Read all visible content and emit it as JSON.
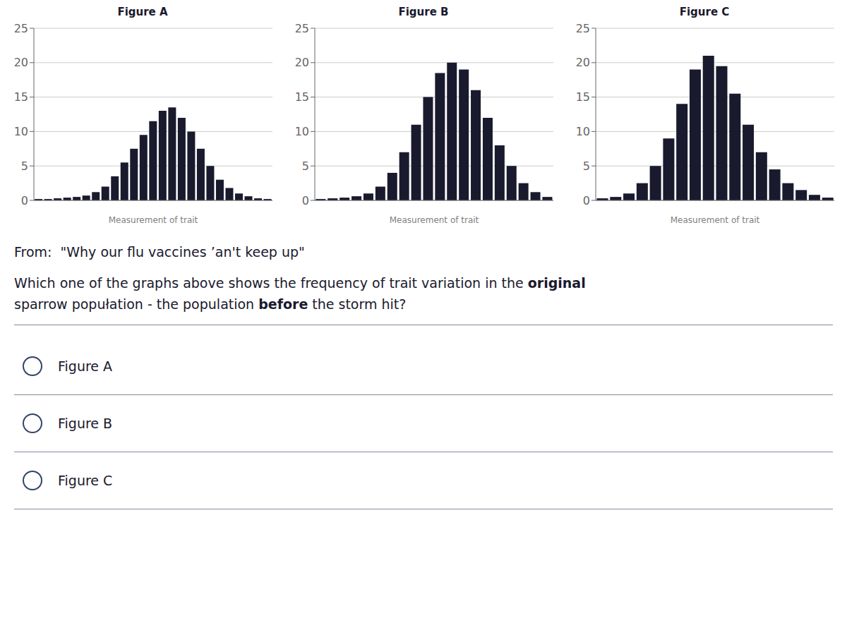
{
  "chart_data": [
    {
      "type": "bar",
      "title": "Figure A",
      "xlabel": "Measurement of trait",
      "categories": [
        null,
        null,
        null,
        null,
        null,
        null,
        null,
        null,
        null,
        null,
        null,
        null,
        null,
        null,
        null,
        null,
        null,
        null,
        null,
        null,
        null,
        null,
        null,
        null,
        null
      ],
      "values": [
        0.2,
        0.2,
        0.3,
        0.4,
        0.5,
        0.7,
        1.2,
        2.0,
        3.5,
        5.5,
        7.5,
        9.5,
        11.5,
        13.0,
        13.5,
        12.0,
        10.0,
        7.5,
        5.0,
        3.0,
        1.8,
        1.0,
        0.6,
        0.3,
        0.2
      ],
      "color": "#1a1a2e",
      "ylim": [
        0,
        25
      ],
      "yticks": [
        0,
        5,
        10,
        15,
        20,
        25
      ],
      "grid": true,
      "tick_labels": "y"
    },
    {
      "type": "bar",
      "title": "Figure B",
      "xlabel": "Measurement of trait",
      "categories": [
        null,
        null,
        null,
        null,
        null,
        null,
        null,
        null,
        null,
        null,
        null,
        null,
        null,
        null,
        null,
        null,
        null,
        null,
        null,
        null
      ],
      "values": [
        0.2,
        0.3,
        0.4,
        0.6,
        1.0,
        2.0,
        4.0,
        7.0,
        11.0,
        15.0,
        18.5,
        20.0,
        19.0,
        16.0,
        12.0,
        8.0,
        5.0,
        2.5,
        1.2,
        0.5
      ],
      "color": "#1a1a2e",
      "ylim": [
        0,
        25
      ],
      "yticks": [
        0,
        5,
        10,
        15,
        20,
        25
      ],
      "grid": true,
      "tick_labels": "y"
    },
    {
      "type": "bar",
      "title": "Figure C",
      "xlabel": "Measurement of trait",
      "categories": [
        null,
        null,
        null,
        null,
        null,
        null,
        null,
        null,
        null,
        null,
        null,
        null,
        null,
        null,
        null,
        null,
        null,
        null
      ],
      "values": [
        0.3,
        0.5,
        1.0,
        2.5,
        5.0,
        9.0,
        14.0,
        19.0,
        21.0,
        19.5,
        15.5,
        11.0,
        7.0,
        4.5,
        2.5,
        1.5,
        0.8,
        0.4
      ],
      "color": "#1a1a2e",
      "ylim": [
        0,
        25
      ],
      "yticks": [
        0,
        5,
        10,
        15,
        20,
        25
      ],
      "grid": true,
      "tick_labels": "y"
    }
  ],
  "annotations": [
    "From:  \"Why our flu vaccines ’an't keep up\"",
    "Which one of the graphs above shows the frequency of trait variation in the ",
    "original",
    "sparrow popułation - the population ",
    "before",
    " the storm hit?",
    "Figure A",
    "Figure B",
    "Figure C"
  ]
}
